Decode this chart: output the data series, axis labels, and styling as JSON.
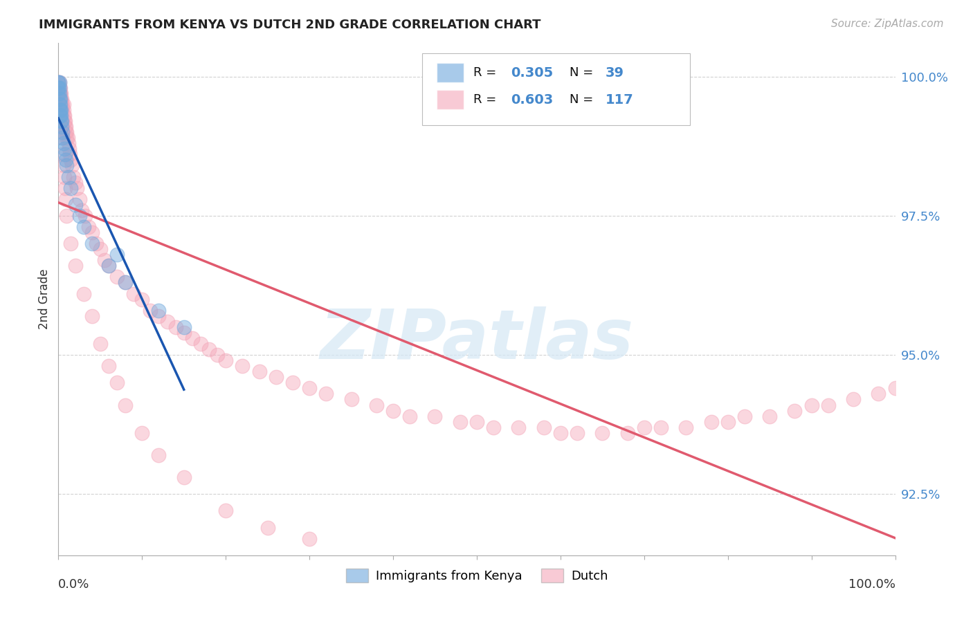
{
  "title": "IMMIGRANTS FROM KENYA VS DUTCH 2ND GRADE CORRELATION CHART",
  "source": "Source: ZipAtlas.com",
  "ylabel": "2nd Grade",
  "xlim": [
    0.0,
    1.0
  ],
  "ylim": [
    0.914,
    1.006
  ],
  "yticks": [
    0.925,
    0.95,
    0.975,
    1.0
  ],
  "ytick_labels": [
    "92.5%",
    "95.0%",
    "97.5%",
    "100.0%"
  ],
  "legend_r_kenya": "0.305",
  "legend_n_kenya": "39",
  "legend_r_dutch": "0.603",
  "legend_n_dutch": "117",
  "color_kenya": "#6fa8dc",
  "color_dutch": "#f4a7b9",
  "color_trend_kenya": "#1a56b0",
  "color_trend_dutch": "#e05a6e",
  "watermark_text": "ZIPatlas",
  "background_color": "#ffffff",
  "grid_color": "#cccccc",
  "title_color": "#222222",
  "axis_tick_color": "#4488cc",
  "legend_label_kenya": "Immigrants from Kenya",
  "legend_label_dutch": "Dutch",
  "kenya_x": [
    0.0,
    0.0,
    0.0,
    0.0,
    0.0,
    0.001,
    0.001,
    0.001,
    0.001,
    0.001,
    0.001,
    0.001,
    0.002,
    0.002,
    0.002,
    0.002,
    0.003,
    0.003,
    0.003,
    0.004,
    0.004,
    0.005,
    0.005,
    0.006,
    0.007,
    0.008,
    0.009,
    0.01,
    0.012,
    0.015,
    0.02,
    0.025,
    0.03,
    0.04,
    0.06,
    0.08,
    0.12,
    0.15,
    0.07
  ],
  "kenya_y": [
    0.999,
    0.999,
    0.998,
    0.998,
    0.997,
    0.999,
    0.998,
    0.997,
    0.996,
    0.995,
    0.994,
    0.993,
    0.996,
    0.995,
    0.994,
    0.993,
    0.994,
    0.993,
    0.992,
    0.992,
    0.991,
    0.99,
    0.989,
    0.988,
    0.987,
    0.986,
    0.985,
    0.984,
    0.982,
    0.98,
    0.977,
    0.975,
    0.973,
    0.97,
    0.966,
    0.963,
    0.958,
    0.955,
    0.968
  ],
  "dutch_x": [
    0.0,
    0.0,
    0.001,
    0.001,
    0.001,
    0.001,
    0.002,
    0.002,
    0.002,
    0.003,
    0.003,
    0.003,
    0.004,
    0.004,
    0.004,
    0.005,
    0.005,
    0.006,
    0.006,
    0.006,
    0.007,
    0.007,
    0.008,
    0.008,
    0.009,
    0.009,
    0.01,
    0.01,
    0.011,
    0.012,
    0.013,
    0.014,
    0.015,
    0.016,
    0.018,
    0.02,
    0.022,
    0.025,
    0.028,
    0.032,
    0.036,
    0.04,
    0.045,
    0.05,
    0.055,
    0.06,
    0.07,
    0.08,
    0.09,
    0.1,
    0.11,
    0.12,
    0.13,
    0.14,
    0.15,
    0.16,
    0.17,
    0.18,
    0.19,
    0.2,
    0.22,
    0.24,
    0.26,
    0.28,
    0.3,
    0.32,
    0.35,
    0.38,
    0.4,
    0.42,
    0.45,
    0.48,
    0.5,
    0.52,
    0.55,
    0.58,
    0.6,
    0.62,
    0.65,
    0.68,
    0.7,
    0.72,
    0.75,
    0.78,
    0.8,
    0.82,
    0.85,
    0.88,
    0.9,
    0.92,
    0.95,
    0.98,
    1.0,
    0.001,
    0.002,
    0.003,
    0.004,
    0.005,
    0.006,
    0.007,
    0.008,
    0.009,
    0.01,
    0.015,
    0.02,
    0.03,
    0.04,
    0.05,
    0.06,
    0.07,
    0.08,
    0.1,
    0.12,
    0.15,
    0.2,
    0.25,
    0.3
  ],
  "dutch_y": [
    0.999,
    0.998,
    0.999,
    0.998,
    0.997,
    0.996,
    0.998,
    0.997,
    0.996,
    0.997,
    0.996,
    0.995,
    0.996,
    0.995,
    0.994,
    0.995,
    0.994,
    0.995,
    0.994,
    0.993,
    0.993,
    0.992,
    0.992,
    0.991,
    0.991,
    0.99,
    0.99,
    0.989,
    0.989,
    0.988,
    0.987,
    0.986,
    0.985,
    0.984,
    0.982,
    0.981,
    0.98,
    0.978,
    0.976,
    0.975,
    0.973,
    0.972,
    0.97,
    0.969,
    0.967,
    0.966,
    0.964,
    0.963,
    0.961,
    0.96,
    0.958,
    0.957,
    0.956,
    0.955,
    0.954,
    0.953,
    0.952,
    0.951,
    0.95,
    0.949,
    0.948,
    0.947,
    0.946,
    0.945,
    0.944,
    0.943,
    0.942,
    0.941,
    0.94,
    0.939,
    0.939,
    0.938,
    0.938,
    0.937,
    0.937,
    0.937,
    0.936,
    0.936,
    0.936,
    0.936,
    0.937,
    0.937,
    0.937,
    0.938,
    0.938,
    0.939,
    0.939,
    0.94,
    0.941,
    0.941,
    0.942,
    0.943,
    0.944,
    0.997,
    0.993,
    0.991,
    0.989,
    0.986,
    0.984,
    0.982,
    0.98,
    0.978,
    0.975,
    0.97,
    0.966,
    0.961,
    0.957,
    0.952,
    0.948,
    0.945,
    0.941,
    0.936,
    0.932,
    0.928,
    0.922,
    0.919,
    0.917
  ]
}
